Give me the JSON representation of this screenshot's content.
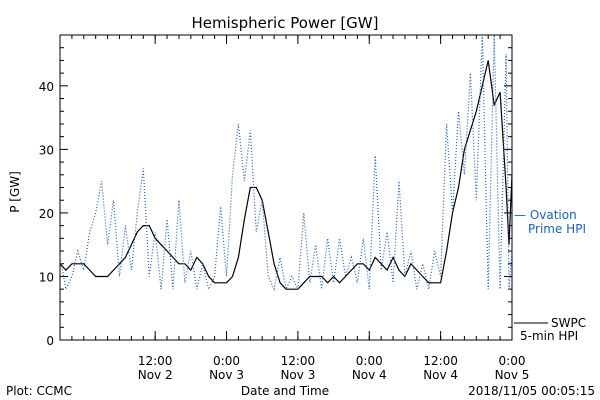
{
  "footer": {
    "left": "Plot: CCMC",
    "right": "2018/11/05 00:05:15"
  },
  "chart_data": {
    "type": "line",
    "title": "Hemispheric Power [GW]",
    "xlabel": "Date and Time",
    "ylabel": "P [GW]",
    "ylim": [
      0,
      48
    ],
    "xlim": [
      "2018-11-01T20:00",
      "2018-11-05T00:00"
    ],
    "yticks": [
      0,
      10,
      20,
      30,
      40
    ],
    "xticks": [
      {
        "t": "2018-11-02T12:00",
        "top": "12:00",
        "bottom": "Nov 2"
      },
      {
        "t": "2018-11-03T00:00",
        "top": "0:00",
        "bottom": "Nov 3"
      },
      {
        "t": "2018-11-03T12:00",
        "top": "12:00",
        "bottom": "Nov 3"
      },
      {
        "t": "2018-11-04T00:00",
        "top": "0:00",
        "bottom": "Nov 4"
      },
      {
        "t": "2018-11-04T12:00",
        "top": "12:00",
        "bottom": "Nov 4"
      },
      {
        "t": "2018-11-05T00:00",
        "top": "0:00",
        "bottom": "Nov 5"
      }
    ],
    "grid": false,
    "series": [
      {
        "name": "SWPC 5-min HPI",
        "color": "#000000",
        "style": "solid",
        "points": [
          [
            "2018-11-01T20:00",
            12
          ],
          [
            "2018-11-01T21:00",
            11
          ],
          [
            "2018-11-01T22:00",
            12
          ],
          [
            "2018-11-02T00:00",
            12
          ],
          [
            "2018-11-02T01:00",
            11
          ],
          [
            "2018-11-02T02:00",
            10
          ],
          [
            "2018-11-02T04:00",
            10
          ],
          [
            "2018-11-02T05:00",
            11
          ],
          [
            "2018-11-02T06:00",
            12
          ],
          [
            "2018-11-02T07:00",
            13
          ],
          [
            "2018-11-02T08:00",
            15
          ],
          [
            "2018-11-02T09:00",
            17
          ],
          [
            "2018-11-02T10:00",
            18
          ],
          [
            "2018-11-02T11:00",
            18
          ],
          [
            "2018-11-02T12:00",
            16
          ],
          [
            "2018-11-02T13:00",
            15
          ],
          [
            "2018-11-02T14:00",
            14
          ],
          [
            "2018-11-02T15:00",
            13
          ],
          [
            "2018-11-02T16:00",
            12
          ],
          [
            "2018-11-02T17:00",
            12
          ],
          [
            "2018-11-02T18:00",
            11
          ],
          [
            "2018-11-02T19:00",
            13
          ],
          [
            "2018-11-02T20:00",
            12
          ],
          [
            "2018-11-02T21:00",
            10
          ],
          [
            "2018-11-02T22:00",
            9
          ],
          [
            "2018-11-02T23:00",
            9
          ],
          [
            "2018-11-03T00:00",
            9
          ],
          [
            "2018-11-03T01:00",
            10
          ],
          [
            "2018-11-03T02:00",
            13
          ],
          [
            "2018-11-03T03:00",
            19
          ],
          [
            "2018-11-03T04:00",
            24
          ],
          [
            "2018-11-03T05:00",
            24
          ],
          [
            "2018-11-03T06:00",
            22
          ],
          [
            "2018-11-03T07:00",
            17
          ],
          [
            "2018-11-03T08:00",
            12
          ],
          [
            "2018-11-03T09:00",
            9
          ],
          [
            "2018-11-03T10:00",
            8
          ],
          [
            "2018-11-03T12:00",
            8
          ],
          [
            "2018-11-03T13:00",
            9
          ],
          [
            "2018-11-03T14:00",
            10
          ],
          [
            "2018-11-03T16:00",
            10
          ],
          [
            "2018-11-03T17:00",
            9
          ],
          [
            "2018-11-03T18:00",
            10
          ],
          [
            "2018-11-03T19:00",
            9
          ],
          [
            "2018-11-03T20:00",
            10
          ],
          [
            "2018-11-03T21:00",
            11
          ],
          [
            "2018-11-03T22:00",
            12
          ],
          [
            "2018-11-03T23:00",
            12
          ],
          [
            "2018-11-04T00:00",
            11
          ],
          [
            "2018-11-04T01:00",
            13
          ],
          [
            "2018-11-04T02:00",
            12
          ],
          [
            "2018-11-04T03:00",
            11
          ],
          [
            "2018-11-04T04:00",
            13
          ],
          [
            "2018-11-04T05:00",
            11
          ],
          [
            "2018-11-04T06:00",
            10
          ],
          [
            "2018-11-04T07:00",
            12
          ],
          [
            "2018-11-04T08:00",
            11
          ],
          [
            "2018-11-04T09:00",
            10
          ],
          [
            "2018-11-04T10:00",
            9
          ],
          [
            "2018-11-04T11:00",
            9
          ],
          [
            "2018-11-04T12:00",
            9
          ],
          [
            "2018-11-04T13:00",
            14
          ],
          [
            "2018-11-04T14:00",
            20
          ],
          [
            "2018-11-04T15:00",
            24
          ],
          [
            "2018-11-04T16:00",
            30
          ],
          [
            "2018-11-04T17:00",
            33
          ],
          [
            "2018-11-04T18:00",
            36
          ],
          [
            "2018-11-04T19:00",
            40
          ],
          [
            "2018-11-04T20:00",
            44
          ],
          [
            "2018-11-04T21:00",
            37
          ],
          [
            "2018-11-04T22:00",
            39
          ],
          [
            "2018-11-04T23:00",
            24
          ],
          [
            "2018-11-04T23:30",
            15
          ],
          [
            "2018-11-05T00:00",
            26
          ]
        ]
      },
      {
        "name": "Ovation Prime HPI",
        "color": "#1f5fbf",
        "style": "dotted",
        "points": [
          [
            "2018-11-01T20:00",
            13
          ],
          [
            "2018-11-01T21:00",
            8
          ],
          [
            "2018-11-01T22:00",
            10
          ],
          [
            "2018-11-01T23:00",
            14
          ],
          [
            "2018-11-02T00:00",
            11
          ],
          [
            "2018-11-02T01:00",
            17
          ],
          [
            "2018-11-02T02:00",
            20
          ],
          [
            "2018-11-02T03:00",
            25
          ],
          [
            "2018-11-02T04:00",
            15
          ],
          [
            "2018-11-02T05:00",
            22
          ],
          [
            "2018-11-02T06:00",
            10
          ],
          [
            "2018-11-02T07:00",
            18
          ],
          [
            "2018-11-02T08:00",
            11
          ],
          [
            "2018-11-02T09:00",
            20
          ],
          [
            "2018-11-02T10:00",
            27
          ],
          [
            "2018-11-02T11:00",
            10
          ],
          [
            "2018-11-02T12:00",
            17
          ],
          [
            "2018-11-02T13:00",
            8
          ],
          [
            "2018-11-02T14:00",
            19
          ],
          [
            "2018-11-02T15:00",
            8
          ],
          [
            "2018-11-02T16:00",
            22
          ],
          [
            "2018-11-02T17:00",
            9
          ],
          [
            "2018-11-02T18:00",
            14
          ],
          [
            "2018-11-02T19:00",
            8
          ],
          [
            "2018-11-02T20:00",
            12
          ],
          [
            "2018-11-02T21:00",
            8
          ],
          [
            "2018-11-02T22:00",
            10
          ],
          [
            "2018-11-02T23:00",
            21
          ],
          [
            "2018-11-03T00:00",
            10
          ],
          [
            "2018-11-03T01:00",
            26
          ],
          [
            "2018-11-03T02:00",
            34
          ],
          [
            "2018-11-03T03:00",
            25
          ],
          [
            "2018-11-03T04:00",
            33
          ],
          [
            "2018-11-03T05:00",
            17
          ],
          [
            "2018-11-03T06:00",
            22
          ],
          [
            "2018-11-03T07:00",
            10
          ],
          [
            "2018-11-03T08:00",
            8
          ],
          [
            "2018-11-03T09:00",
            13
          ],
          [
            "2018-11-03T10:00",
            8
          ],
          [
            "2018-11-03T11:00",
            10
          ],
          [
            "2018-11-03T12:00",
            8
          ],
          [
            "2018-11-03T13:00",
            20
          ],
          [
            "2018-11-03T14:00",
            9
          ],
          [
            "2018-11-03T15:00",
            15
          ],
          [
            "2018-11-03T16:00",
            8
          ],
          [
            "2018-11-03T17:00",
            16
          ],
          [
            "2018-11-03T18:00",
            9
          ],
          [
            "2018-11-03T19:00",
            16
          ],
          [
            "2018-11-03T20:00",
            10
          ],
          [
            "2018-11-03T21:00",
            13
          ],
          [
            "2018-11-03T22:00",
            9
          ],
          [
            "2018-11-03T23:00",
            16
          ],
          [
            "2018-11-04T00:00",
            8
          ],
          [
            "2018-11-04T01:00",
            29
          ],
          [
            "2018-11-04T02:00",
            11
          ],
          [
            "2018-11-04T03:00",
            17
          ],
          [
            "2018-11-04T04:00",
            9
          ],
          [
            "2018-11-04T05:00",
            25
          ],
          [
            "2018-11-04T06:00",
            10
          ],
          [
            "2018-11-04T07:00",
            14
          ],
          [
            "2018-11-04T08:00",
            8
          ],
          [
            "2018-11-04T09:00",
            12
          ],
          [
            "2018-11-04T10:00",
            8
          ],
          [
            "2018-11-04T11:00",
            14
          ],
          [
            "2018-11-04T12:00",
            10
          ],
          [
            "2018-11-04T13:00",
            34
          ],
          [
            "2018-11-04T14:00",
            20
          ],
          [
            "2018-11-04T15:00",
            36
          ],
          [
            "2018-11-04T16:00",
            26
          ],
          [
            "2018-11-04T17:00",
            42
          ],
          [
            "2018-11-04T18:00",
            22
          ],
          [
            "2018-11-04T19:00",
            48
          ],
          [
            "2018-11-04T20:00",
            8
          ],
          [
            "2018-11-04T21:00",
            48
          ],
          [
            "2018-11-04T22:00",
            8
          ],
          [
            "2018-11-04T23:00",
            45
          ],
          [
            "2018-11-04T23:30",
            8
          ],
          [
            "2018-11-05T00:00",
            14
          ]
        ]
      }
    ],
    "legend": {
      "position": "right",
      "ovation": {
        "line1": "— Ovation",
        "line2": "Prime HPI",
        "color": "#1f5fbf"
      },
      "swpc": {
        "line1": "SWPC",
        "line2": "5-min HPI",
        "color": "#000000"
      }
    }
  }
}
